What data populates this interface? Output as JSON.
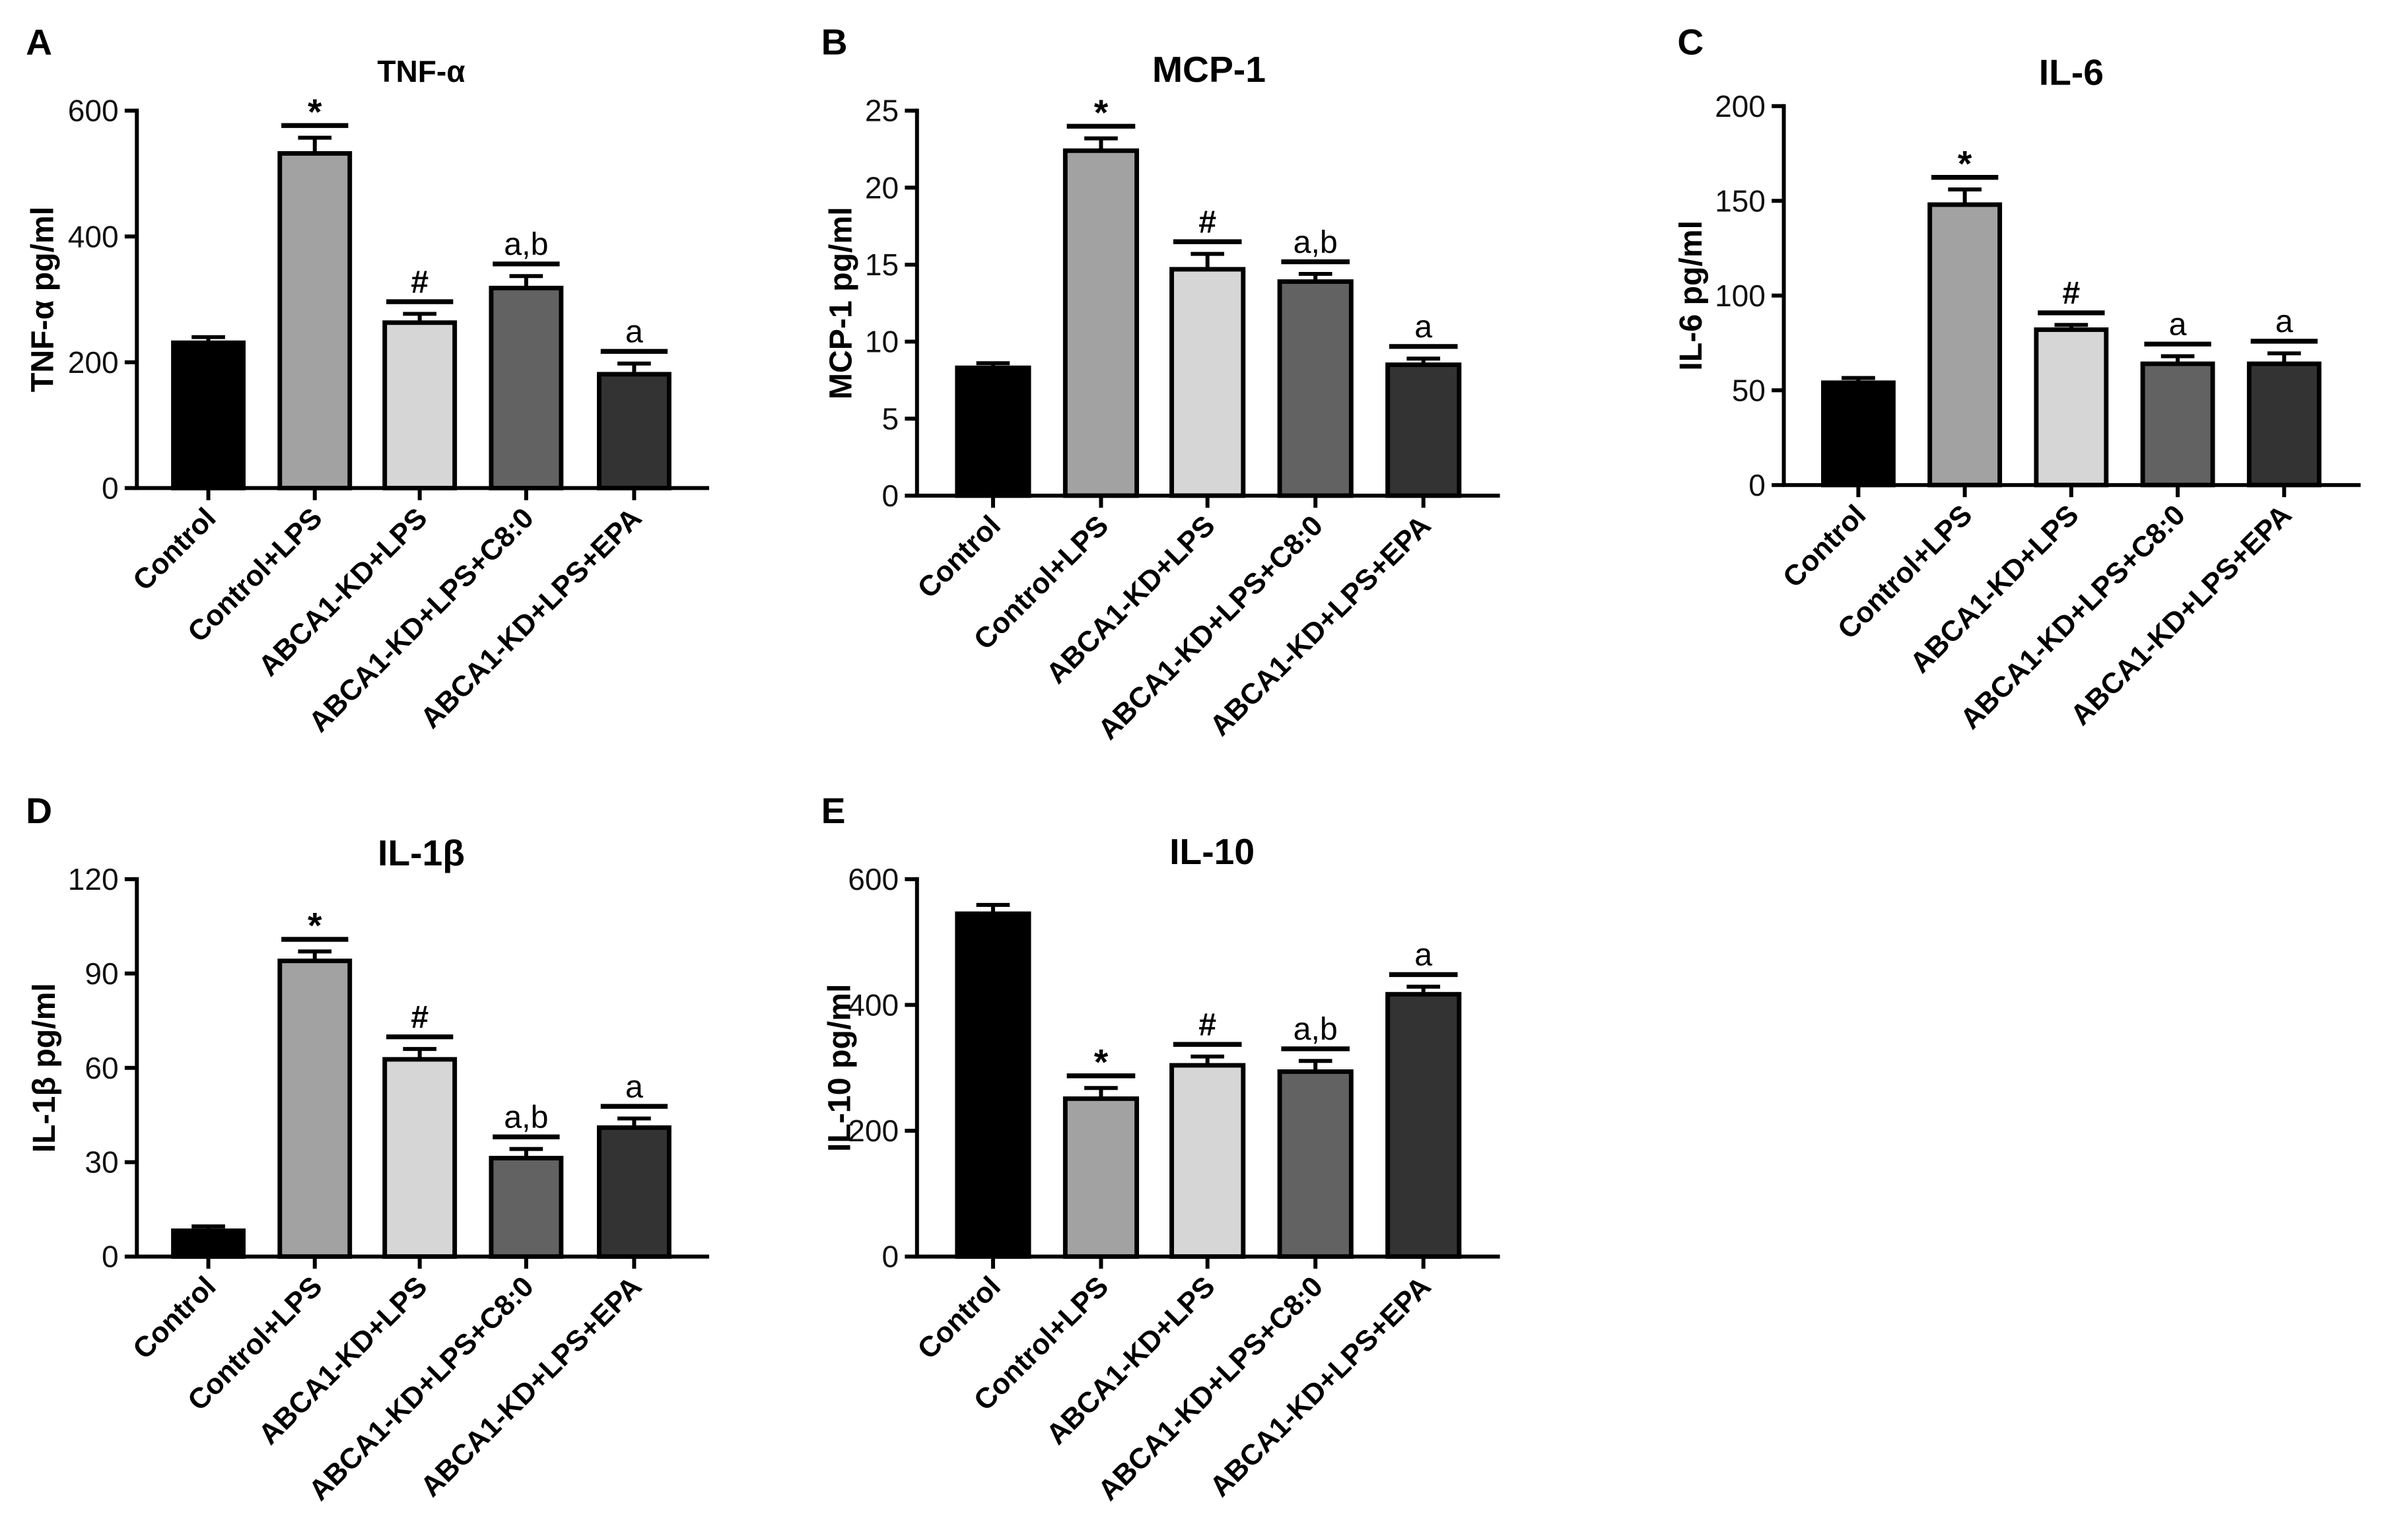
{
  "chart_data": [
    {
      "type": "bar",
      "panel": "A",
      "title": "TNF-α",
      "ylabel": "TNF-α pg/ml",
      "ylim": [
        0,
        600
      ],
      "yticks": [
        0,
        200,
        400,
        600
      ],
      "categories": [
        "Control",
        "Control+LPS",
        "ABCA1-KD+LPS",
        "ABCA1-KD+LPS+C8:0",
        "ABCA1-KD+LPS+EPA"
      ],
      "values": [
        231,
        532,
        263,
        318,
        181
      ],
      "errors": [
        9,
        25,
        14,
        19,
        17
      ],
      "significance": [
        null,
        "*",
        "#",
        "a,b",
        "a"
      ],
      "colors": [
        "#000000",
        "#a2a2a2",
        "#d6d6d6",
        "#626262",
        "#333333"
      ]
    },
    {
      "type": "bar",
      "panel": "B",
      "title": "MCP-1",
      "ylabel": "MCP-1 pg/ml",
      "ylim": [
        0,
        25
      ],
      "yticks": [
        0,
        5,
        10,
        15,
        20,
        25
      ],
      "categories": [
        "Control",
        "Control+LPS",
        "ABCA1-KD+LPS",
        "ABCA1-KD+LPS+C8:0",
        "ABCA1-KD+LPS+EPA"
      ],
      "values": [
        8.3,
        22.4,
        14.7,
        13.9,
        8.5
      ],
      "errors": [
        0.3,
        0.8,
        1.0,
        0.5,
        0.4
      ],
      "significance": [
        null,
        "*",
        "#",
        "a,b",
        "a"
      ],
      "colors": [
        "#000000",
        "#a2a2a2",
        "#d6d6d6",
        "#626262",
        "#333333"
      ]
    },
    {
      "type": "bar",
      "panel": "C",
      "title": "IL-6",
      "ylabel": "IL-6 pg/ml",
      "ylim": [
        0,
        200
      ],
      "yticks": [
        0,
        50,
        100,
        150,
        200
      ],
      "categories": [
        "Control",
        "Control+LPS",
        "ABCA1-KD+LPS",
        "ABCA1-KD+LPS+C8:0",
        "ABCA1-KD+LPS+EPA"
      ],
      "values": [
        54,
        148,
        82,
        64,
        64
      ],
      "errors": [
        2.5,
        8,
        2.5,
        4,
        5.5
      ],
      "significance": [
        null,
        "*",
        "#",
        "a",
        "a"
      ],
      "colors": [
        "#000000",
        "#a2a2a2",
        "#d6d6d6",
        "#626262",
        "#333333"
      ]
    },
    {
      "type": "bar",
      "panel": "D",
      "title": "IL-1β",
      "ylabel": "IL-1β pg/ml",
      "ylim": [
        0,
        120
      ],
      "yticks": [
        0,
        30,
        60,
        90,
        120
      ],
      "categories": [
        "Control",
        "Control+LPS",
        "ABCA1-KD+LPS",
        "ABCA1-KD+LPS+C8:0",
        "ABCA1-KD+LPS+EPA"
      ],
      "values": [
        8.2,
        94,
        62.7,
        31.3,
        41
      ],
      "errors": [
        1.4,
        3,
        3.3,
        2.9,
        2.9
      ],
      "significance": [
        null,
        "*",
        "#",
        "a,b",
        "a"
      ],
      "colors": [
        "#000000",
        "#a2a2a2",
        "#d6d6d6",
        "#626262",
        "#333333"
      ]
    },
    {
      "type": "bar",
      "panel": "E",
      "title": "IL-10",
      "ylabel": "IL-10 pg/ml",
      "ylim": [
        0,
        600
      ],
      "yticks": [
        0,
        200,
        400,
        600
      ],
      "categories": [
        "Control",
        "Control+LPS",
        "ABCA1-KD+LPS",
        "ABCA1-KD+LPS+C8:0",
        "ABCA1-KD+LPS+EPA"
      ],
      "values": [
        545,
        251,
        304,
        294,
        417
      ],
      "errors": [
        14,
        17,
        14,
        17,
        12
      ],
      "significance": [
        null,
        "*",
        "#",
        "a,b",
        "a"
      ],
      "colors": [
        "#000000",
        "#a2a2a2",
        "#d6d6d6",
        "#626262",
        "#333333"
      ]
    }
  ]
}
